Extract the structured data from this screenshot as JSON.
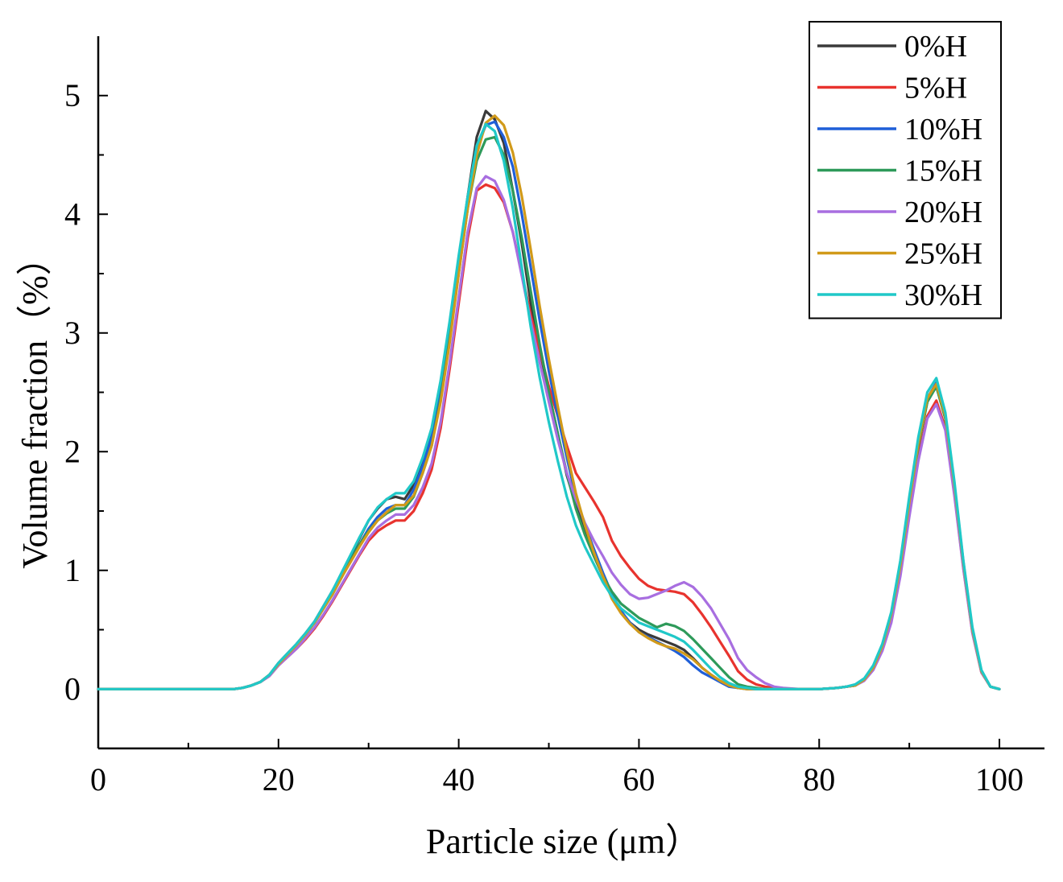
{
  "chart_data": {
    "type": "line",
    "title": "",
    "xlabel": "Particle size (μm）",
    "ylabel": "Volume fraction（%）",
    "xlim": [
      0,
      105
    ],
    "ylim": [
      -0.5,
      5.5
    ],
    "xticks": [
      0,
      20,
      40,
      60,
      80,
      100
    ],
    "yticks": [
      0,
      1,
      2,
      3,
      4,
      5
    ],
    "legend_position": "top-right",
    "grid": false,
    "x": [
      0,
      2,
      4,
      6,
      8,
      10,
      12,
      14,
      15,
      16,
      17,
      18,
      19,
      20,
      21,
      22,
      23,
      24,
      25,
      26,
      27,
      28,
      29,
      30,
      31,
      32,
      33,
      34,
      35,
      36,
      37,
      38,
      39,
      40,
      41,
      42,
      43,
      44,
      45,
      46,
      47,
      48,
      49,
      50,
      51,
      52,
      53,
      54,
      55,
      56,
      57,
      58,
      59,
      60,
      61,
      62,
      63,
      64,
      65,
      66,
      67,
      68,
      69,
      70,
      71,
      72,
      73,
      74,
      75,
      76,
      78,
      80,
      82,
      83,
      84,
      85,
      86,
      87,
      88,
      89,
      90,
      91,
      92,
      93,
      94,
      95,
      96,
      97,
      98,
      99,
      100
    ],
    "series": [
      {
        "name": "0%H",
        "color": "#3a3a3a",
        "values": [
          0,
          0,
          0,
          0,
          0,
          0,
          0,
          0,
          0,
          0.01,
          0.03,
          0.06,
          0.12,
          0.22,
          0.3,
          0.38,
          0.47,
          0.57,
          0.7,
          0.83,
          0.97,
          1.12,
          1.27,
          1.42,
          1.52,
          1.6,
          1.62,
          1.6,
          1.72,
          1.92,
          2.15,
          2.55,
          3.05,
          3.6,
          4.15,
          4.65,
          4.87,
          4.8,
          4.6,
          4.2,
          3.75,
          3.25,
          2.85,
          2.5,
          2.15,
          1.8,
          1.55,
          1.32,
          1.12,
          0.95,
          0.78,
          0.65,
          0.56,
          0.5,
          0.46,
          0.43,
          0.4,
          0.37,
          0.33,
          0.26,
          0.18,
          0.12,
          0.07,
          0.03,
          0.01,
          0.01,
          0,
          0,
          0,
          0,
          0,
          0,
          0.01,
          0.02,
          0.03,
          0.08,
          0.18,
          0.35,
          0.62,
          1.02,
          1.55,
          2.05,
          2.42,
          2.55,
          2.28,
          1.7,
          1.05,
          0.5,
          0.15,
          0.02,
          0
        ]
      },
      {
        "name": "5%H",
        "color": "#e8332e",
        "values": [
          0,
          0,
          0,
          0,
          0,
          0,
          0,
          0,
          0,
          0.01,
          0.03,
          0.06,
          0.11,
          0.2,
          0.27,
          0.34,
          0.42,
          0.51,
          0.62,
          0.74,
          0.87,
          1.0,
          1.13,
          1.25,
          1.33,
          1.38,
          1.42,
          1.42,
          1.5,
          1.65,
          1.85,
          2.2,
          2.7,
          3.25,
          3.8,
          4.2,
          4.25,
          4.22,
          4.1,
          3.85,
          3.5,
          3.15,
          2.85,
          2.55,
          2.3,
          2.05,
          1.82,
          1.7,
          1.58,
          1.45,
          1.25,
          1.12,
          1.02,
          0.93,
          0.87,
          0.84,
          0.83,
          0.82,
          0.8,
          0.73,
          0.63,
          0.52,
          0.4,
          0.28,
          0.15,
          0.08,
          0.04,
          0.02,
          0.01,
          0,
          0,
          0,
          0.01,
          0.02,
          0.03,
          0.08,
          0.17,
          0.33,
          0.58,
          0.97,
          1.48,
          1.95,
          2.3,
          2.43,
          2.2,
          1.65,
          1.02,
          0.48,
          0.14,
          0.02,
          0
        ]
      },
      {
        "name": "10%H",
        "color": "#1f5fd8",
        "values": [
          0,
          0,
          0,
          0,
          0,
          0,
          0,
          0,
          0,
          0.01,
          0.03,
          0.06,
          0.12,
          0.21,
          0.29,
          0.37,
          0.46,
          0.56,
          0.68,
          0.8,
          0.94,
          1.08,
          1.22,
          1.35,
          1.45,
          1.52,
          1.55,
          1.55,
          1.68,
          1.88,
          2.12,
          2.5,
          3.0,
          3.55,
          4.1,
          4.55,
          4.75,
          4.78,
          4.65,
          4.4,
          4.0,
          3.55,
          3.1,
          2.68,
          2.3,
          1.95,
          1.62,
          1.38,
          1.18,
          0.98,
          0.8,
          0.66,
          0.56,
          0.48,
          0.44,
          0.4,
          0.36,
          0.32,
          0.27,
          0.2,
          0.14,
          0.1,
          0.06,
          0.02,
          0.01,
          0,
          0,
          0,
          0,
          0,
          0,
          0,
          0.01,
          0.02,
          0.03,
          0.08,
          0.18,
          0.36,
          0.63,
          1.05,
          1.58,
          2.08,
          2.45,
          2.58,
          2.3,
          1.72,
          1.07,
          0.5,
          0.15,
          0.02,
          0
        ]
      },
      {
        "name": "15%H",
        "color": "#2e9a5a",
        "values": [
          0,
          0,
          0,
          0,
          0,
          0,
          0,
          0,
          0,
          0.01,
          0.03,
          0.06,
          0.12,
          0.21,
          0.29,
          0.37,
          0.46,
          0.56,
          0.68,
          0.8,
          0.94,
          1.08,
          1.22,
          1.33,
          1.42,
          1.48,
          1.52,
          1.52,
          1.62,
          1.82,
          2.05,
          2.45,
          2.95,
          3.5,
          4.05,
          4.45,
          4.63,
          4.65,
          4.5,
          4.2,
          3.8,
          3.35,
          2.9,
          2.5,
          2.15,
          1.82,
          1.52,
          1.3,
          1.12,
          0.95,
          0.82,
          0.72,
          0.66,
          0.6,
          0.56,
          0.52,
          0.55,
          0.53,
          0.49,
          0.42,
          0.34,
          0.26,
          0.18,
          0.1,
          0.04,
          0.02,
          0.01,
          0,
          0,
          0,
          0,
          0,
          0.01,
          0.02,
          0.03,
          0.08,
          0.18,
          0.35,
          0.62,
          1.02,
          1.55,
          2.05,
          2.42,
          2.55,
          2.28,
          1.7,
          1.05,
          0.5,
          0.15,
          0.02,
          0
        ]
      },
      {
        "name": "20%H",
        "color": "#a86ee0",
        "values": [
          0,
          0,
          0,
          0,
          0,
          0,
          0,
          0,
          0,
          0.01,
          0.03,
          0.06,
          0.11,
          0.2,
          0.27,
          0.34,
          0.43,
          0.52,
          0.63,
          0.75,
          0.88,
          1.01,
          1.14,
          1.27,
          1.36,
          1.42,
          1.47,
          1.47,
          1.55,
          1.7,
          1.9,
          2.25,
          2.75,
          3.3,
          3.85,
          4.22,
          4.32,
          4.28,
          4.12,
          3.85,
          3.48,
          3.1,
          2.75,
          2.42,
          2.1,
          1.82,
          1.6,
          1.4,
          1.25,
          1.12,
          0.98,
          0.88,
          0.8,
          0.76,
          0.77,
          0.8,
          0.83,
          0.87,
          0.9,
          0.86,
          0.78,
          0.68,
          0.55,
          0.42,
          0.26,
          0.16,
          0.1,
          0.05,
          0.02,
          0.01,
          0,
          0,
          0.01,
          0.02,
          0.03,
          0.07,
          0.16,
          0.32,
          0.56,
          0.95,
          1.45,
          1.92,
          2.28,
          2.4,
          2.18,
          1.63,
          1.01,
          0.47,
          0.14,
          0.02,
          0
        ]
      },
      {
        "name": "25%H",
        "color": "#d19a1a",
        "values": [
          0,
          0,
          0,
          0,
          0,
          0,
          0,
          0,
          0,
          0.01,
          0.03,
          0.06,
          0.12,
          0.21,
          0.29,
          0.37,
          0.46,
          0.56,
          0.68,
          0.8,
          0.94,
          1.07,
          1.2,
          1.32,
          1.42,
          1.49,
          1.55,
          1.55,
          1.63,
          1.82,
          2.05,
          2.42,
          2.92,
          3.5,
          4.05,
          4.5,
          4.77,
          4.83,
          4.75,
          4.52,
          4.15,
          3.7,
          3.22,
          2.78,
          2.38,
          2.0,
          1.65,
          1.38,
          1.15,
          0.95,
          0.76,
          0.64,
          0.55,
          0.48,
          0.43,
          0.39,
          0.36,
          0.34,
          0.3,
          0.25,
          0.18,
          0.12,
          0.07,
          0.03,
          0.01,
          0,
          0,
          0,
          0,
          0,
          0,
          0,
          0.01,
          0.02,
          0.03,
          0.08,
          0.18,
          0.36,
          0.63,
          1.04,
          1.57,
          2.07,
          2.45,
          2.57,
          2.3,
          1.72,
          1.06,
          0.5,
          0.15,
          0.02,
          0
        ]
      },
      {
        "name": "30%H",
        "color": "#20c8c8",
        "values": [
          0,
          0,
          0,
          0,
          0,
          0,
          0,
          0,
          0,
          0.01,
          0.03,
          0.06,
          0.12,
          0.22,
          0.3,
          0.38,
          0.47,
          0.57,
          0.7,
          0.83,
          0.98,
          1.13,
          1.28,
          1.42,
          1.53,
          1.6,
          1.65,
          1.65,
          1.75,
          1.95,
          2.2,
          2.6,
          3.1,
          3.65,
          4.15,
          4.58,
          4.76,
          4.7,
          4.45,
          4.05,
          3.55,
          3.05,
          2.62,
          2.25,
          1.92,
          1.62,
          1.38,
          1.2,
          1.05,
          0.9,
          0.78,
          0.68,
          0.62,
          0.56,
          0.53,
          0.5,
          0.47,
          0.44,
          0.4,
          0.33,
          0.25,
          0.17,
          0.1,
          0.05,
          0.02,
          0.01,
          0,
          0,
          0,
          0,
          0,
          0,
          0.01,
          0.02,
          0.04,
          0.09,
          0.2,
          0.38,
          0.65,
          1.08,
          1.62,
          2.12,
          2.5,
          2.62,
          2.33,
          1.75,
          1.08,
          0.52,
          0.16,
          0.02,
          0
        ]
      }
    ]
  }
}
